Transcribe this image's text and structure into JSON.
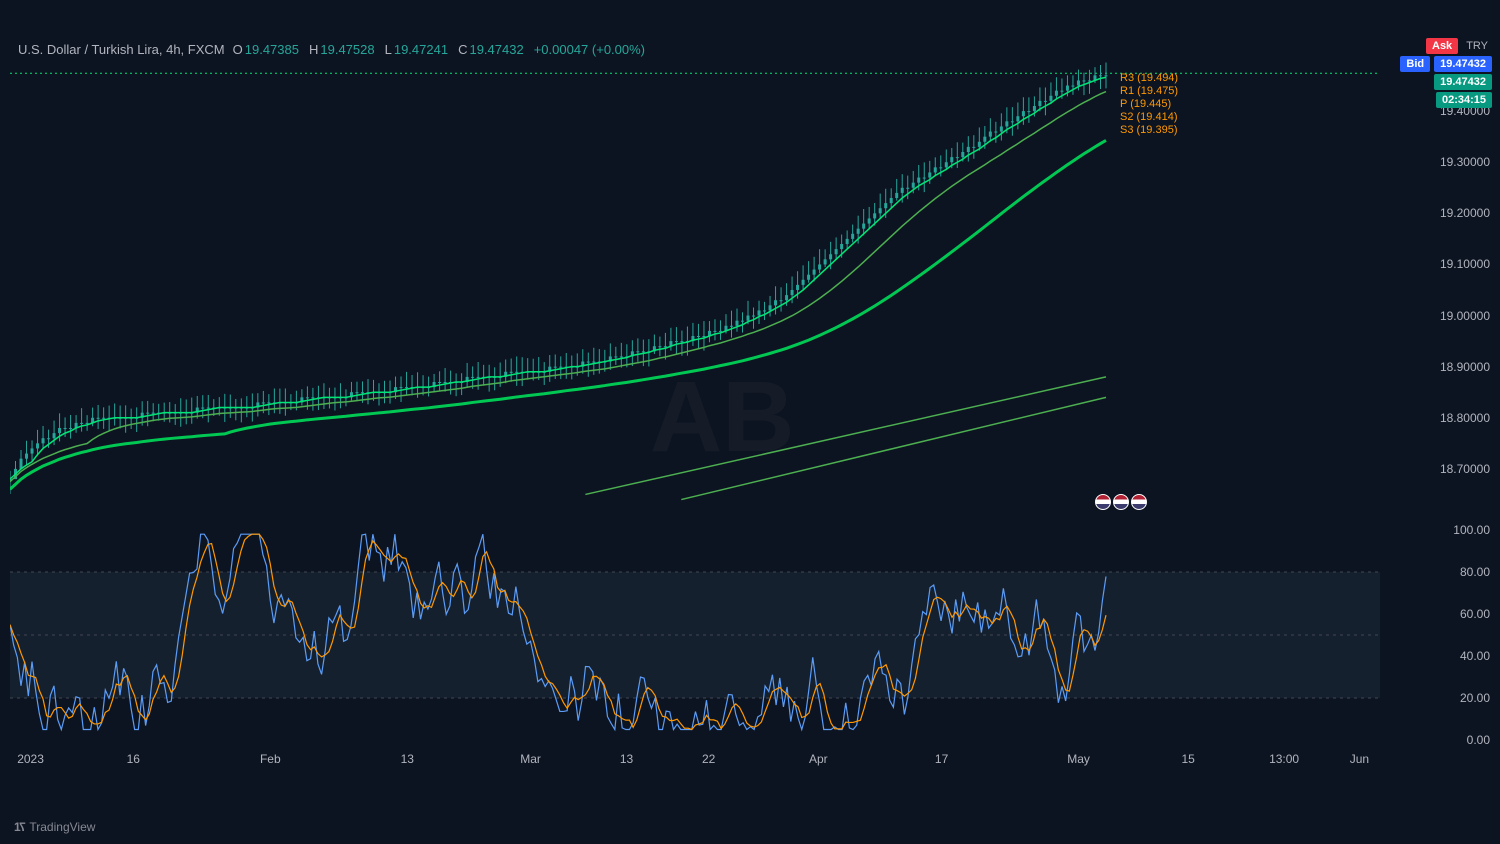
{
  "header": {
    "symbol": "U.S. Dollar / Turkish Lira, 4h, FXCM",
    "O_lbl": "O",
    "O": "19.47385",
    "H_lbl": "H",
    "H": "19.47528",
    "L_lbl": "L",
    "L": "19.47241",
    "C_lbl": "C",
    "C": "19.47432",
    "chg": "+0.00047 (+0.00%)"
  },
  "badges": {
    "ask_lbl": "Ask",
    "ask_color": "#f23645",
    "bid_lbl": "Bid",
    "bid_color": "#2962ff",
    "try_lbl": "TRY",
    "price": "19.47432",
    "price_color": "#2962ff",
    "price2": "19.47432",
    "price2_color": "#089981",
    "countdown": "02:34:15",
    "countdown_color": "#089981"
  },
  "pivots": {
    "r3": "R3 (19.494)",
    "r1": "R1 (19.475)",
    "p": "P (19.445)",
    "s2": "S2 (19.414)",
    "s3": "S3 (19.395)"
  },
  "price_chart": {
    "type": "candlestick-with-ma",
    "background_color": "#0d1421",
    "ylim": [
      18.6,
      19.5
    ],
    "yticks": [
      18.7,
      18.8,
      18.9,
      19.0,
      19.1,
      19.2,
      19.3,
      19.4
    ],
    "ytick_labels": [
      "18.70000",
      "18.80000",
      "18.90000",
      "19.00000",
      "19.10000",
      "19.20000",
      "19.30000",
      "19.40000"
    ],
    "ma_colors": {
      "fast": "#00e676",
      "mid": "#4caf50",
      "slow": "#00c853"
    },
    "ma_widths": {
      "fast": 1.5,
      "mid": 1.5,
      "slow": 3
    },
    "trend_line_color": "#4caf50",
    "candle_up_color": "#26a69a",
    "candle_down_color": "#ef5350",
    "wick_up_color": "#26a69a",
    "wick_down_color": "#ef5350",
    "close_series": [
      18.68,
      18.7,
      18.72,
      18.73,
      18.74,
      18.75,
      18.76,
      18.76,
      18.77,
      18.78,
      18.78,
      18.78,
      18.79,
      18.79,
      18.79,
      18.8,
      18.8,
      18.8,
      18.8,
      18.8,
      18.8,
      18.8,
      18.8,
      18.8,
      18.81,
      18.81,
      18.81,
      18.81,
      18.81,
      18.81,
      18.81,
      18.81,
      18.81,
      18.81,
      18.82,
      18.82,
      18.82,
      18.82,
      18.82,
      18.82,
      18.82,
      18.82,
      18.82,
      18.82,
      18.82,
      18.83,
      18.83,
      18.83,
      18.83,
      18.83,
      18.83,
      18.83,
      18.83,
      18.84,
      18.84,
      18.84,
      18.84,
      18.84,
      18.84,
      18.84,
      18.84,
      18.84,
      18.85,
      18.85,
      18.85,
      18.85,
      18.85,
      18.85,
      18.85,
      18.85,
      18.86,
      18.86,
      18.86,
      18.86,
      18.86,
      18.86,
      18.86,
      18.87,
      18.87,
      18.87,
      18.87,
      18.87,
      18.87,
      18.88,
      18.88,
      18.88,
      18.88,
      18.88,
      18.88,
      18.88,
      18.89,
      18.89,
      18.89,
      18.89,
      18.89,
      18.89,
      18.89,
      18.89,
      18.9,
      18.9,
      18.9,
      18.9,
      18.9,
      18.9,
      18.91,
      18.91,
      18.91,
      18.91,
      18.91,
      18.92,
      18.92,
      18.92,
      18.92,
      18.93,
      18.93,
      18.93,
      18.93,
      18.94,
      18.94,
      18.94,
      18.95,
      18.95,
      18.95,
      18.95,
      18.96,
      18.96,
      18.96,
      18.97,
      18.97,
      18.97,
      18.98,
      18.98,
      18.99,
      18.99,
      19.0,
      19.0,
      19.01,
      19.01,
      19.02,
      19.03,
      19.03,
      19.04,
      19.05,
      19.06,
      19.07,
      19.08,
      19.09,
      19.1,
      19.11,
      19.12,
      19.13,
      19.14,
      19.15,
      19.16,
      19.17,
      19.18,
      19.19,
      19.2,
      19.21,
      19.22,
      19.23,
      19.24,
      19.25,
      19.25,
      19.26,
      19.27,
      19.27,
      19.28,
      19.29,
      19.29,
      19.3,
      19.31,
      19.31,
      19.32,
      19.33,
      19.33,
      19.34,
      19.35,
      19.36,
      19.36,
      19.37,
      19.38,
      19.38,
      19.39,
      19.4,
      19.4,
      19.41,
      19.42,
      19.42,
      19.43,
      19.44,
      19.44,
      19.45,
      19.45,
      19.46,
      19.46,
      19.46,
      19.47,
      19.47,
      19.47
    ]
  },
  "indicator": {
    "type": "stochastic",
    "ylim": [
      0,
      100
    ],
    "yticks": [
      0,
      20,
      40,
      50,
      60,
      80,
      100
    ],
    "ytick_labels": [
      "0.00",
      "20.00",
      "40.00",
      "",
      "60.00",
      "80.00",
      "100.00"
    ],
    "band_fill": "#1b2838",
    "band_top": 80,
    "band_bot": 20,
    "grid_color": "#434651",
    "k_color": "#5b9cf6",
    "d_color": "#ff9800",
    "line_width": 1.2
  },
  "xaxis": {
    "labels": [
      "2023",
      "16",
      "Feb",
      "13",
      "Mar",
      "13",
      "22",
      "Apr",
      "17",
      "May",
      "15",
      "13:00",
      "Jun"
    ],
    "positions_pct": [
      1.5,
      9.0,
      19.0,
      29.0,
      38.0,
      45.0,
      51.0,
      59.0,
      68.0,
      78.0,
      86.0,
      93.0,
      98.5
    ]
  },
  "footer": {
    "brand": "TradingView"
  }
}
